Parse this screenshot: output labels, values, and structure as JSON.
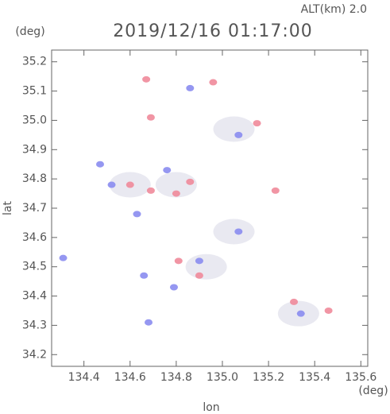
{
  "chart_data": {
    "type": "scatter",
    "title": "2019/12/16 01:17:00",
    "subtitle": "ALT(km) 2.0",
    "x_label": "lon",
    "y_label": "lat",
    "x_unit": "(deg)",
    "y_unit": "(deg)",
    "xlim": [
      134.26,
      135.63
    ],
    "ylim": [
      34.16,
      35.24
    ],
    "xticks": [
      134.4,
      134.6,
      134.8,
      {
        "value": 135,
        "label": "135.0"
      },
      135.2,
      135.4,
      135.6
    ],
    "yticks": [
      34.2,
      34.3,
      34.4,
      34.5,
      34.6,
      34.7,
      34.8,
      34.9,
      {
        "value": 35,
        "label": "35.0"
      },
      35.1,
      35.2
    ],
    "series": [
      {
        "color": "#e4e4ee",
        "x": [
          134.8,
          135.05,
          135.33,
          134.93,
          135.05,
          134.6
        ],
        "values": [
          34.78,
          34.97,
          34.34,
          34.5,
          34.62,
          34.78
        ]
      },
      {
        "color": "#f08a9a",
        "x": [
          134.67,
          134.96,
          134.69,
          135.15,
          134.86,
          134.8,
          134.6,
          135.23,
          134.81,
          135.31,
          135.46,
          134.69,
          134.9
        ],
        "values": [
          35.14,
          35.13,
          35.01,
          34.99,
          34.79,
          34.75,
          34.78,
          34.76,
          34.52,
          34.38,
          34.35,
          34.76,
          34.47
        ]
      },
      {
        "color": "#8a8cf0",
        "x": [
          134.31,
          134.47,
          134.52,
          134.63,
          134.86,
          135.07,
          134.66,
          135.34,
          134.9,
          135.07,
          134.79,
          134.68,
          134.76
        ],
        "values": [
          34.53,
          34.85,
          34.78,
          34.68,
          35.11,
          34.95,
          34.47,
          34.34,
          34.52,
          34.62,
          34.43,
          34.31,
          34.83
        ]
      }
    ]
  }
}
